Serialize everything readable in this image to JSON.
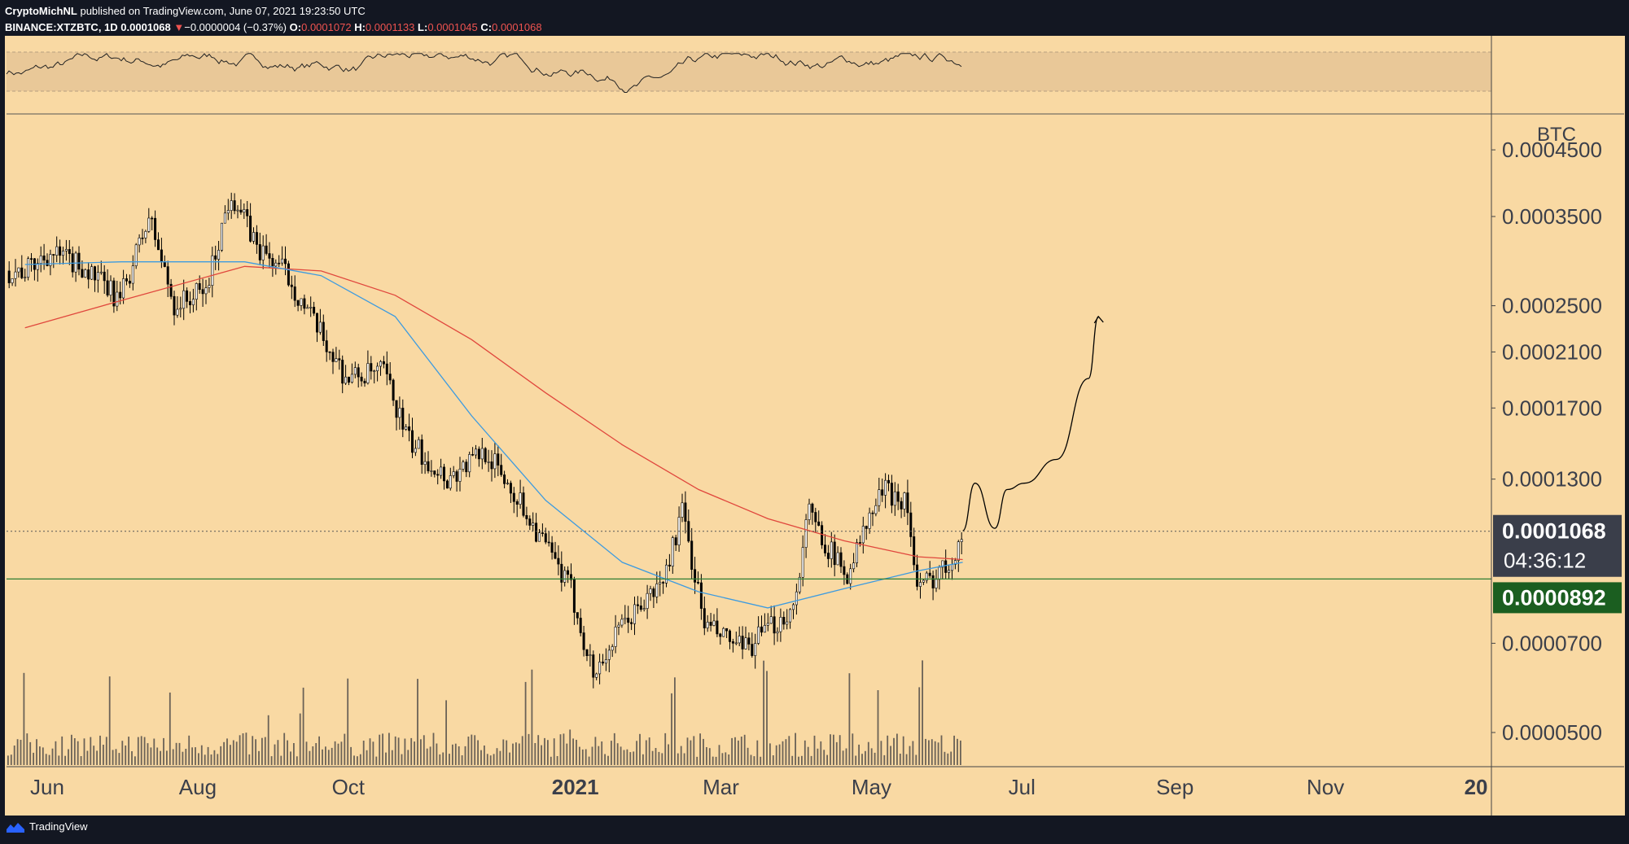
{
  "header": {
    "line1_author": "CryptoMichNL",
    "line1_rest": "published on TradingView.com, June 07, 2021 19:23:50 UTC",
    "symbol": "BINANCE:XTZBTC, 1D",
    "last": "0.0001068",
    "change_arrow": "▼",
    "change": "−0.0000004 (−0.37%)",
    "o_label": "O:",
    "o_val": "0.0001072",
    "h_label": "H:",
    "h_val": "0.0001133",
    "l_label": "L:",
    "l_val": "0.0001045",
    "c_label": "C:",
    "c_val": "0.0001068"
  },
  "footer": {
    "brand": "TradingView",
    "logo_icon": "tradingview-logo-icon"
  },
  "colors": {
    "panel_bg": "#f9d9a3",
    "candle": "#000000",
    "ma_fast": "#3d9be0",
    "ma_slow": "#e0473d",
    "rsi_band": "#e9c898",
    "last_price_bg": "#3a3e4a",
    "support_bg": "#1b5e20",
    "support_line": "#2e7d32"
  },
  "chart_data": {
    "type": "candlestick",
    "symbol": "XTZBTC",
    "timeframe": "1D",
    "y_scale": "log",
    "y_unit": "BTC",
    "y_ticks": [
      "0.0004500",
      "0.0003500",
      "0.0002500",
      "0.0002100",
      "0.0001700",
      "0.0001300",
      "0.0000700",
      "0.0000500"
    ],
    "y_tick_values": [
      0.00045,
      0.00035,
      0.00025,
      0.00021,
      0.00017,
      0.00013,
      7e-05,
      5e-05
    ],
    "x_ticks": [
      "Jun",
      "Aug",
      "Oct",
      "2021",
      "Mar",
      "May",
      "Jul",
      "Sep",
      "Nov",
      "20"
    ],
    "x_tick_dates": [
      "2020-06-01",
      "2020-08-01",
      "2020-10-01",
      "2021-01-01",
      "2021-03-01",
      "2021-05-01",
      "2021-07-01",
      "2021-09-01",
      "2021-11-01",
      "2022-01-01"
    ],
    "price_close_path": [
      [
        "2020-05-23",
        0.000285
      ],
      [
        "2020-06-01",
        0.000305
      ],
      [
        "2020-06-15",
        0.00029
      ],
      [
        "2020-06-30",
        0.000255
      ],
      [
        "2020-07-12",
        0.00035
      ],
      [
        "2020-07-22",
        0.00025
      ],
      [
        "2020-08-04",
        0.000265
      ],
      [
        "2020-08-14",
        0.000385
      ],
      [
        "2020-08-25",
        0.00031
      ],
      [
        "2020-09-05",
        0.000285
      ],
      [
        "2020-09-15",
        0.00024
      ],
      [
        "2020-09-30",
        0.00019
      ],
      [
        "2020-10-15",
        0.000195
      ],
      [
        "2020-10-25",
        0.00015
      ],
      [
        "2020-11-10",
        0.00013
      ],
      [
        "2020-11-25",
        0.000145
      ],
      [
        "2020-12-10",
        0.000118
      ],
      [
        "2020-12-30",
        8.5e-05
      ],
      [
        "2021-01-08",
        6.2e-05
      ],
      [
        "2021-01-20",
        7.5e-05
      ],
      [
        "2021-02-05",
        8.8e-05
      ],
      [
        "2021-02-13",
        0.000115
      ],
      [
        "2021-02-22",
        7.5e-05
      ],
      [
        "2021-03-10",
        6.8e-05
      ],
      [
        "2021-03-30",
        8e-05
      ],
      [
        "2021-04-05",
        0.000115
      ],
      [
        "2021-04-20",
        9e-05
      ],
      [
        "2021-05-05",
        0.000125
      ],
      [
        "2021-05-15",
        0.00012
      ],
      [
        "2021-05-19",
        8.5e-05
      ],
      [
        "2021-06-01",
        9.5e-05
      ],
      [
        "2021-06-07",
        0.000107
      ]
    ],
    "ma_fast_path": [
      [
        "2020-05-23",
        0.000292
      ],
      [
        "2020-07-01",
        0.000295
      ],
      [
        "2020-08-20",
        0.000295
      ],
      [
        "2020-09-20",
        0.00028
      ],
      [
        "2020-10-20",
        0.00024
      ],
      [
        "2020-11-20",
        0.000165
      ],
      [
        "2020-12-20",
        0.00012
      ],
      [
        "2021-01-20",
        9.5e-05
      ],
      [
        "2021-02-20",
        8.5e-05
      ],
      [
        "2021-03-20",
        8e-05
      ],
      [
        "2021-04-20",
        8.6e-05
      ],
      [
        "2021-05-20",
        9.2e-05
      ],
      [
        "2021-06-07",
        9.5e-05
      ]
    ],
    "ma_slow_path": [
      [
        "2020-05-23",
        0.00023
      ],
      [
        "2020-07-01",
        0.000255
      ],
      [
        "2020-08-20",
        0.00029
      ],
      [
        "2020-09-20",
        0.000285
      ],
      [
        "2020-10-20",
        0.00026
      ],
      [
        "2020-11-20",
        0.00022
      ],
      [
        "2020-12-20",
        0.00018
      ],
      [
        "2021-01-20",
        0.000148
      ],
      [
        "2021-02-20",
        0.000125
      ],
      [
        "2021-03-20",
        0.000112
      ],
      [
        "2021-04-20",
        0.000103
      ],
      [
        "2021-05-20",
        9.7e-05
      ],
      [
        "2021-06-07",
        9.6e-05
      ]
    ],
    "projection_path": [
      [
        "2021-06-07",
        0.000107
      ],
      [
        "2021-06-12",
        0.000128
      ],
      [
        "2021-06-20",
        0.000108
      ],
      [
        "2021-06-25",
        0.000125
      ],
      [
        "2021-07-02",
        0.000128
      ],
      [
        "2021-07-15",
        0.00014
      ],
      [
        "2021-07-28",
        0.00019
      ],
      [
        "2021-08-01",
        0.00024
      ]
    ],
    "volume_bars_date_range": [
      "2020-05-23",
      "2021-06-07"
    ],
    "last_price": {
      "label": "0.0001068",
      "countdown": "04:36:12"
    },
    "support": {
      "label": "0.0000892"
    },
    "rsi_band_range": [
      30,
      70
    ]
  }
}
